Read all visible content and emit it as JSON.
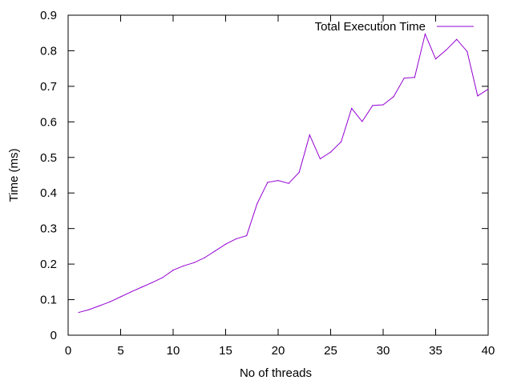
{
  "chart_data": {
    "type": "line",
    "title": "",
    "xlabel": "No of threads",
    "ylabel": "Time (ms)",
    "xlim": [
      0,
      40
    ],
    "ylim": [
      0,
      0.9
    ],
    "xticks": [
      0,
      5,
      10,
      15,
      20,
      25,
      30,
      35,
      40
    ],
    "yticks": [
      0,
      0.1,
      0.2,
      0.3,
      0.4,
      0.5,
      0.6,
      0.7,
      0.8,
      0.9
    ],
    "grid": false,
    "legend_position": "top-right",
    "series": [
      {
        "name": "Total Execution Time",
        "color": "#9400d3",
        "x": [
          1,
          2,
          3,
          4,
          5,
          6,
          7,
          8,
          9,
          10,
          11,
          12,
          13,
          14,
          15,
          16,
          17,
          18,
          19,
          20,
          21,
          22,
          23,
          24,
          25,
          26,
          27,
          28,
          29,
          30,
          31,
          32,
          33,
          34,
          35,
          36,
          37,
          38,
          39,
          40
        ],
        "y": [
          0.064,
          0.072,
          0.083,
          0.094,
          0.108,
          0.122,
          0.135,
          0.148,
          0.162,
          0.183,
          0.195,
          0.204,
          0.218,
          0.237,
          0.256,
          0.271,
          0.28,
          0.37,
          0.43,
          0.435,
          0.427,
          0.458,
          0.563,
          0.496,
          0.515,
          0.544,
          0.638,
          0.601,
          0.646,
          0.648,
          0.671,
          0.723,
          0.725,
          0.847,
          0.777,
          0.802,
          0.832,
          0.798,
          0.673,
          0.692
        ]
      }
    ]
  }
}
